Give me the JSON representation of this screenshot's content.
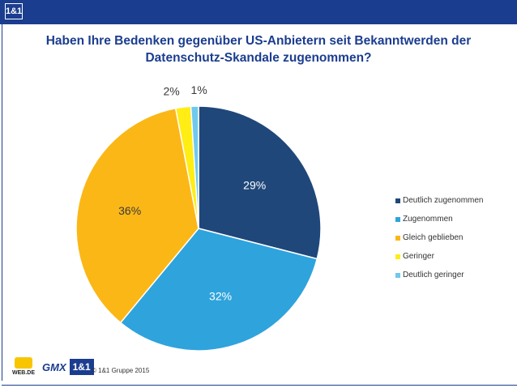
{
  "header": {
    "logo_text": "1&1"
  },
  "chart_data": {
    "type": "pie",
    "title": "Haben Ihre Bedenken gegenüber US-Anbietern seit Bekanntwerden der Datenschutz-Skandale zugenommen?",
    "title_line1": "Haben Ihre Bedenken gegenüber US-Anbietern seit Bekanntwerden der",
    "title_line2": "Datenschutz-Skandale zugenommen?",
    "legend_position": "right",
    "slices": [
      {
        "label": "Deutlich zugenommen",
        "value": 29,
        "display": "29%",
        "color": "#1f477a",
        "text_color": "#ffffff"
      },
      {
        "label": "Zugenommen",
        "value": 32,
        "display": "32%",
        "color": "#2fa3dc",
        "text_color": "#ffffff"
      },
      {
        "label": "Gleich geblieben",
        "value": 36,
        "display": "36%",
        "color": "#fbb716",
        "text_color": "#3a3a3a"
      },
      {
        "label": "Geringer",
        "value": 2,
        "display": "2%",
        "color": "#ffed14",
        "text_color": "#3a3a3a"
      },
      {
        "label": "Deutlich geringer",
        "value": 1,
        "display": "1%",
        "color": "#6fc9ec",
        "text_color": "#3a3a3a"
      }
    ]
  },
  "footer": {
    "brand_webde": "WEB.DE",
    "brand_gmx": "GMX",
    "brand_1und1": "1&1",
    "copyright": "© 1&1 Gruppe 2015"
  }
}
